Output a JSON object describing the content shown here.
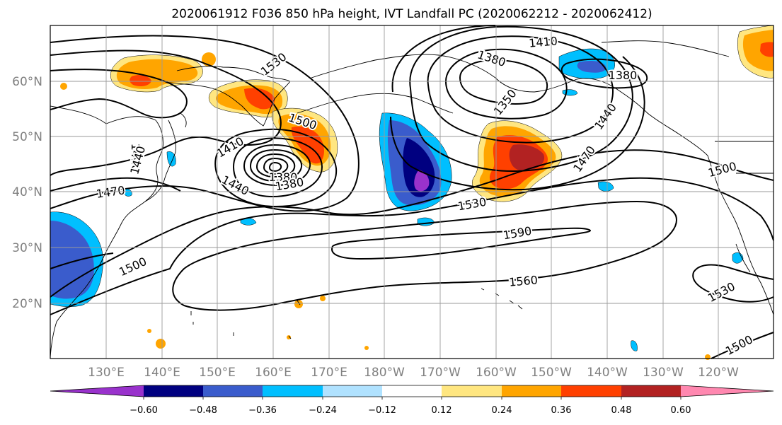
{
  "figure": {
    "title": "2020061912 F036 850 hPa height, IVT Landfall PC (2020062212 - 2020062412)"
  },
  "map": {
    "lon_labels": [
      "130°E",
      "140°E",
      "150°E",
      "160°E",
      "170°E",
      "180°W",
      "170°W",
      "160°W",
      "150°W",
      "140°W",
      "130°W",
      "120°W"
    ],
    "lat_labels": [
      "60°N",
      "50°N",
      "40°N",
      "30°N",
      "20°N"
    ],
    "contour_labels": [
      "1410",
      "1530",
      "1380",
      "1350",
      "1380",
      "1440",
      "1500",
      "1470",
      "1500",
      "1410",
      "1440",
      "1380",
      "1380",
      "1470",
      "1530",
      "1590",
      "1500",
      "1560",
      "1530",
      "1500",
      "1410",
      "1440"
    ],
    "features": [
      "850 hPa geopotential height contours",
      "IVT landfall PC anomaly shading",
      "coastlines"
    ]
  },
  "colorbar": {
    "tick_labels": [
      "−0.60",
      "−0.48",
      "−0.36",
      "−0.24",
      "−0.12",
      "0.12",
      "0.24",
      "0.36",
      "0.48",
      "0.60"
    ],
    "colors": [
      "#9932cc",
      "#000080",
      "#3a5ccc",
      "#00bfff",
      "#b0e2ff",
      "#ffffff",
      "#ffe680",
      "#ffa500",
      "#ff4000",
      "#b22222",
      "#ff88b0"
    ]
  }
}
